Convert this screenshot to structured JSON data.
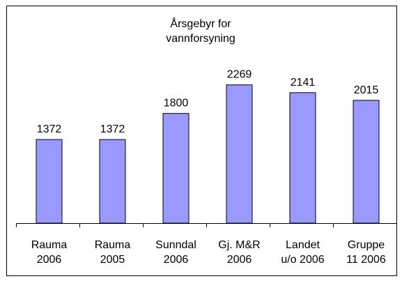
{
  "chart_data": {
    "type": "bar",
    "title": "Årsgebyr for\nvannforsyning",
    "categories": [
      "Rauma\n2006",
      "Rauma\n2005",
      "Sunndal\n2006",
      "Gj. M&R\n2006",
      "Landet\nu/o 2006",
      "Gruppe\n11 2006"
    ],
    "values": [
      1372,
      1372,
      1800,
      2269,
      2141,
      2015
    ],
    "color": "#9999ff",
    "ylim": [
      0,
      2500
    ]
  }
}
